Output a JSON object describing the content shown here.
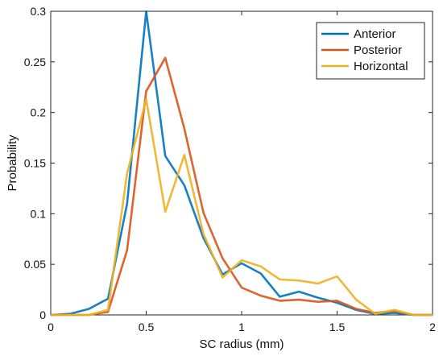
{
  "chart_data": {
    "type": "line",
    "xlabel": "SC radius (mm)",
    "ylabel": "Probability",
    "xlim": [
      0,
      2
    ],
    "ylim": [
      0,
      0.3
    ],
    "xticks": [
      0,
      0.5,
      1,
      1.5,
      2
    ],
    "xtick_labels": [
      "0",
      "0.5",
      "1",
      "1.5",
      "2"
    ],
    "yticks": [
      0,
      0.05,
      0.1,
      0.15,
      0.2,
      0.25,
      0.3
    ],
    "ytick_labels": [
      "0",
      "0.05",
      "0.1",
      "0.15",
      "0.2",
      "0.25",
      "0.3"
    ],
    "grid": false,
    "legend_position": "top-right",
    "x": [
      0,
      0.1,
      0.2,
      0.3,
      0.4,
      0.5,
      0.6,
      0.7,
      0.8,
      0.9,
      1.0,
      1.1,
      1.2,
      1.3,
      1.4,
      1.5,
      1.6,
      1.7,
      1.8,
      1.9,
      2.0
    ],
    "series": [
      {
        "name": "Anterior",
        "color": "#0072BD",
        "values": [
          0,
          0.001,
          0.006,
          0.016,
          0.11,
          0.3,
          0.157,
          0.128,
          0.076,
          0.04,
          0.051,
          0.041,
          0.018,
          0.023,
          0.017,
          0.012,
          0.005,
          0.001,
          0.002,
          0,
          0
        ]
      },
      {
        "name": "Posterior",
        "color": "#D95319",
        "values": [
          0,
          0,
          0,
          0.003,
          0.064,
          0.221,
          0.254,
          0.184,
          0.101,
          0.056,
          0.027,
          0.019,
          0.014,
          0.015,
          0.013,
          0.014,
          0.006,
          0.002,
          0.004,
          0,
          0
        ]
      },
      {
        "name": "Horizontal",
        "color": "#EDB120",
        "values": [
          0,
          0,
          0,
          0.005,
          0.14,
          0.213,
          0.102,
          0.158,
          0.08,
          0.037,
          0.054,
          0.048,
          0.035,
          0.034,
          0.031,
          0.038,
          0.015,
          0.001,
          0.005,
          0,
          0
        ]
      }
    ]
  }
}
